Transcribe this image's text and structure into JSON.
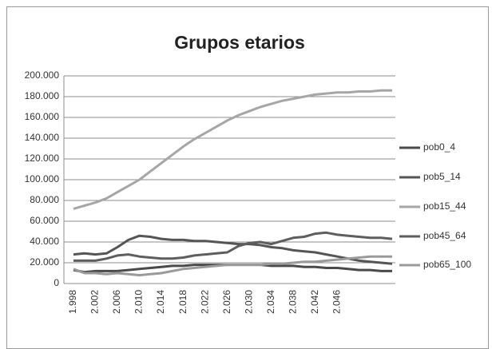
{
  "chart_data": {
    "type": "line",
    "title": "Grupos etarios",
    "categories": [
      "1.998",
      null,
      "2.002",
      null,
      "2.006",
      null,
      "2.010",
      null,
      "2.014",
      null,
      "2.018",
      null,
      "2.022",
      null,
      "2.026",
      null,
      "2.030",
      null,
      "2.034",
      null,
      "2.038",
      null,
      "2.042",
      null,
      "2.046",
      null,
      null,
      null,
      null,
      null
    ],
    "series": [
      {
        "name": "pob0_4",
        "color": "#4a4a4a",
        "values": [
          13000,
          11000,
          12000,
          12000,
          12000,
          13000,
          14000,
          15000,
          16000,
          17000,
          17000,
          18000,
          18000,
          18000,
          18000,
          18000,
          18000,
          18000,
          17000,
          17000,
          17000,
          16000,
          16000,
          15000,
          15000,
          14000,
          13000,
          13000,
          12000,
          12000
        ]
      },
      {
        "name": "pob5_14",
        "color": "#555555",
        "values": [
          28000,
          29000,
          28000,
          29000,
          35000,
          42000,
          46000,
          45000,
          43000,
          42000,
          42000,
          41000,
          41000,
          40000,
          39000,
          38000,
          38000,
          37000,
          35000,
          34000,
          32000,
          31000,
          30000,
          28000,
          26000,
          24000,
          22000,
          21000,
          20000,
          19000
        ]
      },
      {
        "name": "pob15_44",
        "color": "#a6a6a6",
        "values": [
          72000,
          75000,
          78000,
          82000,
          88000,
          94000,
          100000,
          108000,
          116000,
          124000,
          132000,
          139000,
          145000,
          151000,
          157000,
          162000,
          166000,
          170000,
          173000,
          176000,
          178000,
          180000,
          182000,
          183000,
          184000,
          184000,
          185000,
          185000,
          186000,
          186000
        ]
      },
      {
        "name": "pob45_64",
        "color": "#5e5e5e",
        "values": [
          22000,
          22000,
          22000,
          24000,
          27000,
          28000,
          26000,
          25000,
          24000,
          24000,
          25000,
          27000,
          28000,
          29000,
          30000,
          36000,
          39000,
          40000,
          38000,
          41000,
          44000,
          45000,
          48000,
          49000,
          47000,
          46000,
          45000,
          44000,
          44000,
          43000
        ]
      },
      {
        "name": "pob65_100",
        "color": "#9a9a9a",
        "values": [
          14000,
          10000,
          10000,
          9000,
          10000,
          9000,
          8000,
          9000,
          10000,
          12000,
          14000,
          15000,
          16000,
          17000,
          18000,
          18000,
          18000,
          18000,
          19000,
          19000,
          20000,
          21000,
          21000,
          22000,
          23000,
          24000,
          25000,
          26000,
          26000,
          26000
        ]
      }
    ],
    "ylim": [
      0,
      200000
    ],
    "yticks": [
      0,
      {
        "value": 20000,
        "label": "20.000"
      },
      {
        "value": 40000,
        "label": "40.000"
      },
      {
        "value": 60000,
        "label": "60.000"
      },
      {
        "value": 80000,
        "label": "80.000"
      },
      {
        "value": 100000,
        "label": "100.000"
      },
      {
        "value": 120000,
        "label": "120.000"
      },
      {
        "value": 140000,
        "label": "140.000"
      },
      {
        "value": 160000,
        "label": "160.000"
      },
      {
        "value": 180000,
        "label": "180.000"
      },
      {
        "value": 200000,
        "label": "200.000"
      }
    ],
    "grid": true,
    "legend": "right"
  }
}
